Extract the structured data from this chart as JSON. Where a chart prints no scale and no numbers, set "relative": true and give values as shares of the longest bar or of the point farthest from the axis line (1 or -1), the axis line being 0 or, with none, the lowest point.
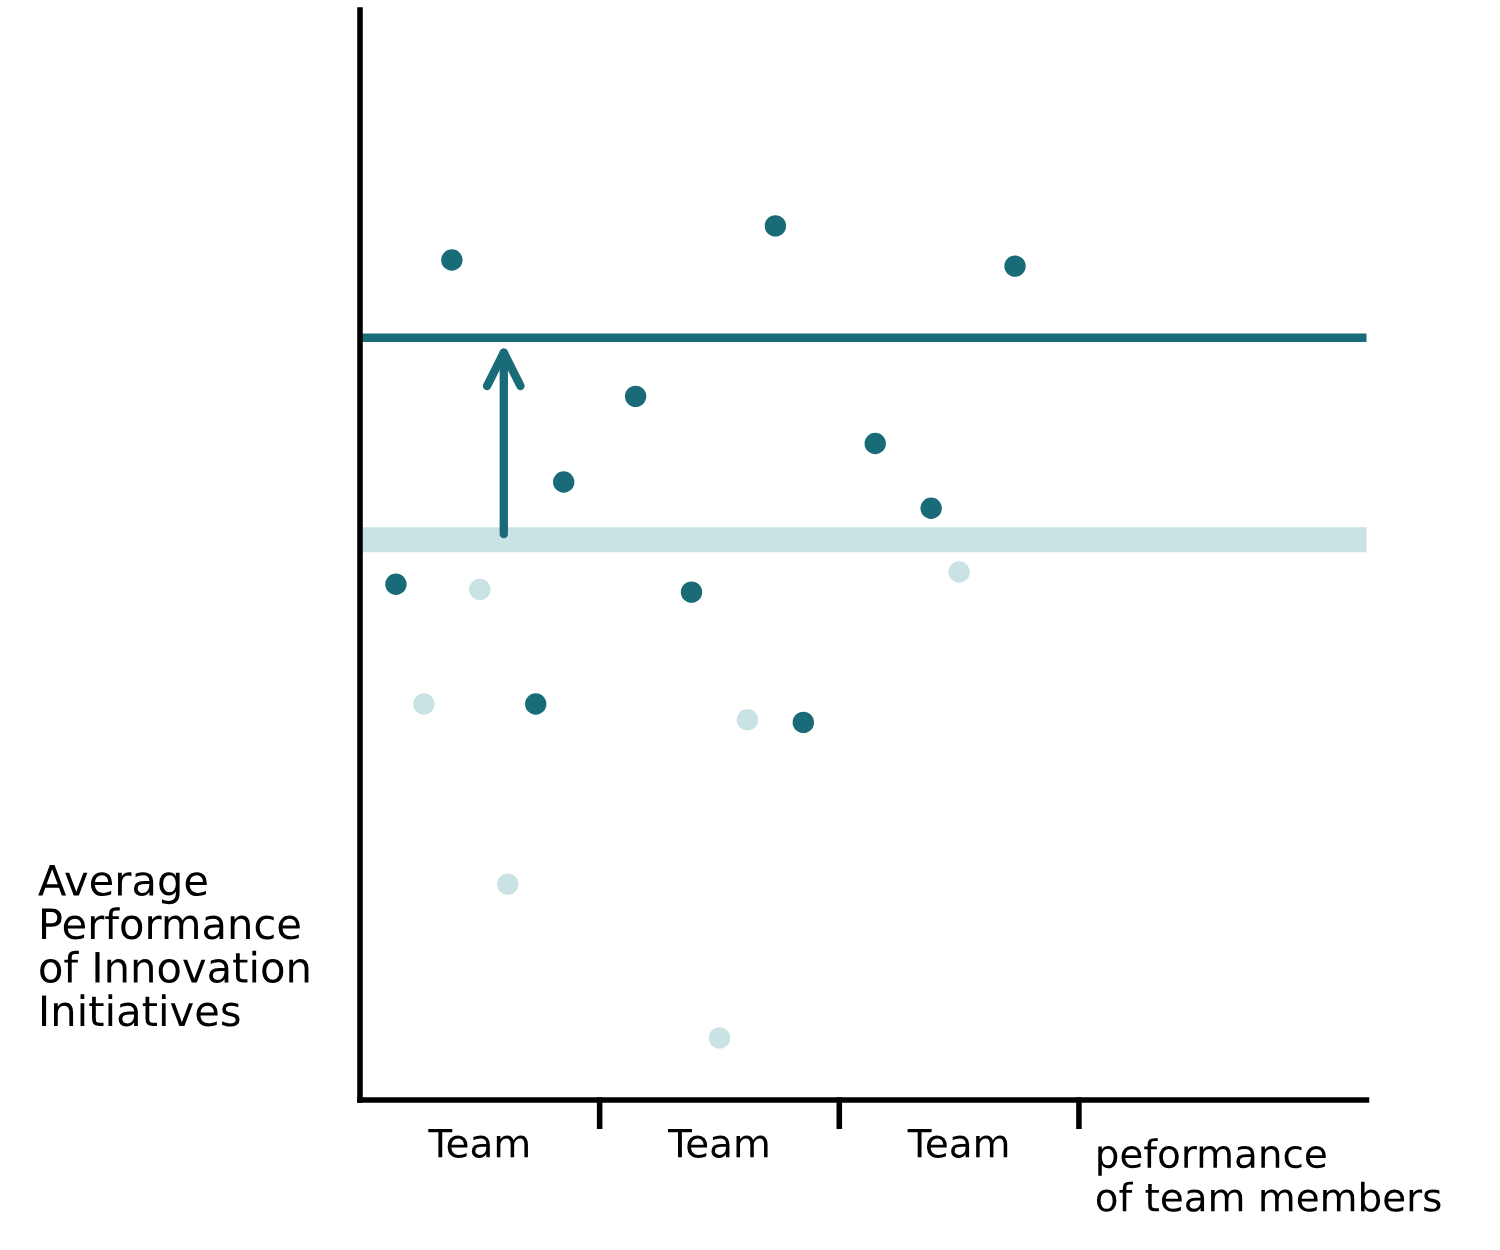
{
  "chart_data": {
    "type": "scatter",
    "relative": true,
    "ylabel": "Average\nPerformance\nof Innovation\nInitiatives",
    "xlabel": "peformance\nof team members",
    "categories": [
      "Team",
      "Team",
      "Team"
    ],
    "marker": "circle",
    "grid": false,
    "legend": false,
    "series": [
      {
        "color": "#1a6b78",
        "values": [
          0.59,
          0.805,
          0.751
        ]
      },
      {
        "color": "#c9e2e4",
        "values": [
          0.453,
          null,
          null
        ]
      },
      {
        "color": "#1a6b78",
        "values": [
          0.961,
          0.581,
          0.677
        ]
      },
      {
        "color": "#c9e2e4",
        "values": [
          0.584,
          0.071,
          0.604
        ]
      },
      {
        "color": "#c9e2e4",
        "values": [
          0.247,
          0.435,
          null
        ]
      },
      {
        "color": "#1a6b78",
        "values": [
          0.453,
          1.0,
          0.954
        ]
      },
      {
        "color": "#1a6b78",
        "values": [
          0.707,
          0.432,
          null
        ]
      }
    ],
    "ref_lines": [
      {
        "axis": "y",
        "value": 0.872,
        "color": "#1a6b78",
        "line_style": "solid"
      },
      {
        "axis": "y",
        "value": 0.641,
        "color": "#c9e2e4",
        "line_style": "solid"
      }
    ]
  }
}
